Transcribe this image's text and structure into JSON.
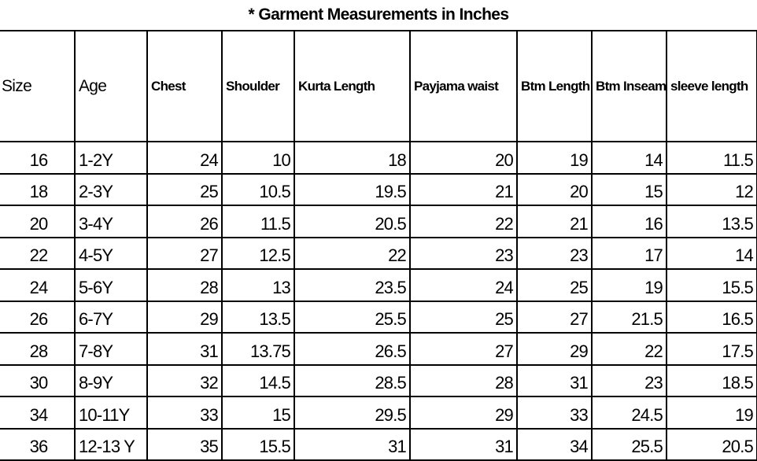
{
  "title": "* Garment Measurements in Inches",
  "columns": [
    "Size",
    "Age",
    "Chest",
    "Shoulder",
    "Kurta  Length",
    "Payjama waist",
    "Btm Length",
    "Btm Inseam",
    "sleeve length"
  ],
  "rows": [
    [
      "16",
      "1-2Y",
      "24",
      "10",
      "18",
      "20",
      "19",
      "14",
      "11.5"
    ],
    [
      "18",
      "2-3Y",
      "25",
      "10.5",
      "19.5",
      "21",
      "20",
      "15",
      "12"
    ],
    [
      "20",
      "3-4Y",
      "26",
      "11.5",
      "20.5",
      "22",
      "21",
      "16",
      "13.5"
    ],
    [
      "22",
      "4-5Y",
      "27",
      "12.5",
      "22",
      "23",
      "23",
      "17",
      "14"
    ],
    [
      "24",
      "5-6Y",
      "28",
      "13",
      "23.5",
      "24",
      "25",
      "19",
      "15.5"
    ],
    [
      "26",
      "6-7Y",
      "29",
      "13.5",
      "25.5",
      "25",
      "27",
      "21.5",
      "16.5"
    ],
    [
      "28",
      "7-8Y",
      "31",
      "13.75",
      "26.5",
      "27",
      "29",
      "22",
      "17.5"
    ],
    [
      "30",
      "8-9Y",
      "32",
      "14.5",
      "28.5",
      "28",
      "31",
      "23",
      "18.5"
    ],
    [
      "34",
      "10-11Y",
      "33",
      "15",
      "29.5",
      "29",
      "33",
      "24.5",
      "19"
    ],
    [
      "36",
      "12-13 Y",
      "35",
      "15.5",
      "31",
      "31",
      "34",
      "25.5",
      "20.5"
    ]
  ]
}
